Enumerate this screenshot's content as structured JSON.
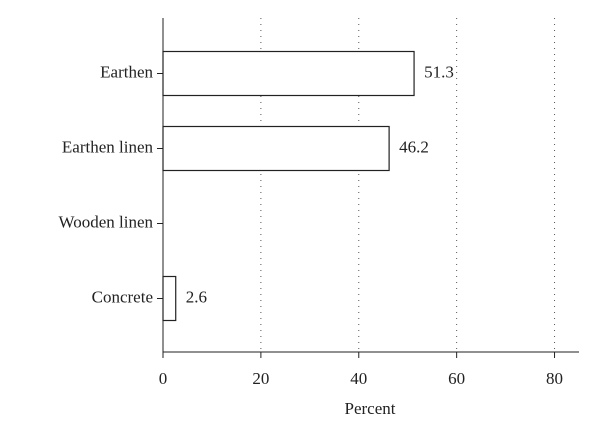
{
  "chart_data": {
    "type": "hbar",
    "categories": [
      "Earthen",
      "Earthen linen",
      "Wooden linen",
      "Concrete"
    ],
    "values": [
      51.3,
      46.2,
      null,
      2.6
    ],
    "color": "#ffffff",
    "xlabel": "Percent",
    "xlim": [
      0,
      85
    ],
    "xticks": [
      0,
      20,
      40,
      60,
      80
    ],
    "grid": true
  }
}
